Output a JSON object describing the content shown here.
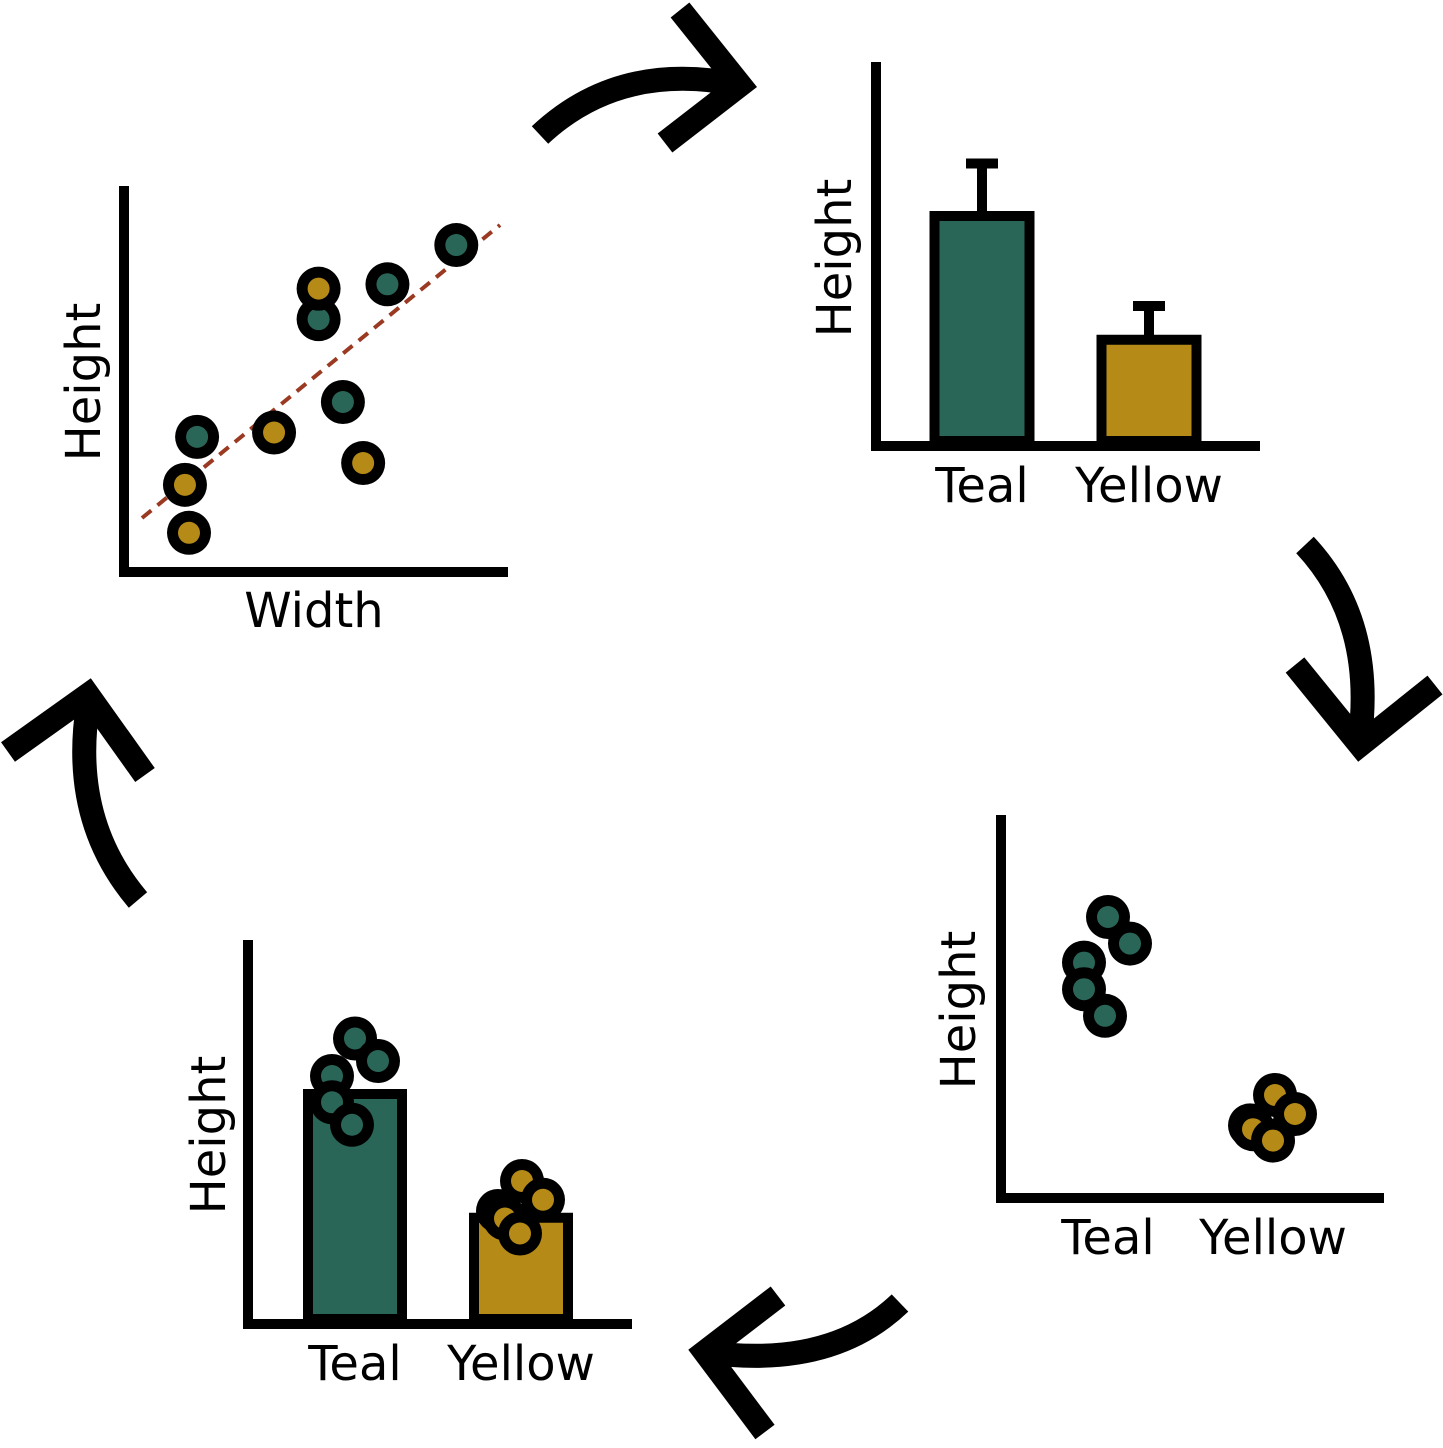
{
  "colors": {
    "teal": "#2a6657",
    "yellow": "#b58a17",
    "outline": "#000000",
    "trend_line": "#9a3a22",
    "background": "#ffffff"
  },
  "panels": {
    "scatter": {
      "xlabel": "Width",
      "ylabel": "Height"
    },
    "bar_error": {
      "ylabel": "Height",
      "categories": [
        "Teal",
        "Yellow"
      ]
    },
    "dot_groups": {
      "ylabel": "Height",
      "categories": [
        "Teal",
        "Yellow"
      ]
    },
    "bar_points": {
      "ylabel": "Height",
      "categories": [
        "Teal",
        "Yellow"
      ]
    }
  },
  "arrows": [
    {
      "name": "arrow-scatter-to-bar",
      "direction": "clockwise"
    },
    {
      "name": "arrow-bar-to-dots",
      "direction": "clockwise"
    },
    {
      "name": "arrow-dots-to-barpoints",
      "direction": "clockwise"
    },
    {
      "name": "arrow-barpoints-to-scatter",
      "direction": "clockwise"
    }
  ],
  "chart_data": [
    {
      "type": "scatter",
      "xlabel": "Width",
      "ylabel": "Height",
      "trend_line": "dashed",
      "series": [
        {
          "color": "teal",
          "points": [
            [
              2.2,
              4.2
            ],
            [
              5.2,
              6.9
            ],
            [
              5.8,
              5.0
            ],
            [
              6.9,
              7.7
            ],
            [
              8.6,
              8.6
            ]
          ]
        },
        {
          "color": "yellow",
          "points": [
            [
              1.9,
              3.1
            ],
            [
              2.0,
              2.0
            ],
            [
              4.1,
              4.3
            ],
            [
              5.2,
              7.6
            ],
            [
              6.3,
              3.6
            ]
          ]
        }
      ]
    },
    {
      "type": "bar",
      "categories": [
        "Teal",
        "Yellow"
      ],
      "ylabel": "Height",
      "values": [
        6.0,
        2.7
      ],
      "error": [
        1.4,
        0.9
      ]
    },
    {
      "type": "scatter",
      "categories": [
        "Teal",
        "Yellow"
      ],
      "ylabel": "Height",
      "series": [
        {
          "color": "teal",
          "values": [
            7.5,
            6.8,
            6.3,
            5.6,
            4.9
          ]
        },
        {
          "color": "yellow",
          "values": [
            3.5,
            3.0,
            2.7,
            2.6,
            2.3
          ]
        }
      ]
    },
    {
      "type": "bar",
      "categories": [
        "Teal",
        "Yellow"
      ],
      "ylabel": "Height",
      "values": [
        6.0,
        2.7
      ],
      "points": [
        {
          "color": "teal",
          "values": [
            7.4,
            6.8,
            6.4,
            5.7,
            5.1
          ]
        },
        {
          "color": "yellow",
          "values": [
            3.6,
            3.1,
            2.8,
            2.6,
            2.2
          ]
        }
      ]
    }
  ]
}
